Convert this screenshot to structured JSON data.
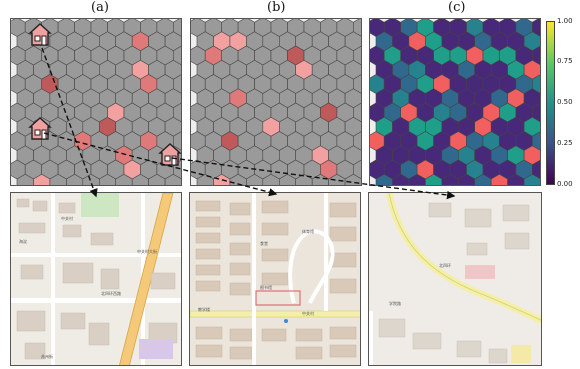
{
  "panel_labels": [
    "(a)",
    "(b)",
    "(c)"
  ],
  "colorbar": {
    "ticks": [
      "1.00",
      "0.75",
      "0.50",
      "0.25",
      "0.00"
    ],
    "colors": [
      "#440154",
      "#3b528b",
      "#21918c",
      "#5ec962",
      "#fde725"
    ]
  },
  "hex_colors": {
    "gray": "#9a9a9a",
    "light_red": "#f2a0a0",
    "mid_red": "#e07a7a",
    "dark_red": "#c05a5a",
    "high_red": "#f25f5f"
  },
  "map_labels": {
    "a": [
      "中关村",
      "北四环西路",
      "中关村大街",
      "海淀",
      "苏州街"
    ],
    "b": [
      "教学楼",
      "体育馆",
      "食堂",
      "图书馆",
      "中关村"
    ],
    "c": [
      "北四环",
      "学院路"
    ]
  },
  "icons": [
    "house-icon",
    "house-icon",
    "house-icon"
  ]
}
